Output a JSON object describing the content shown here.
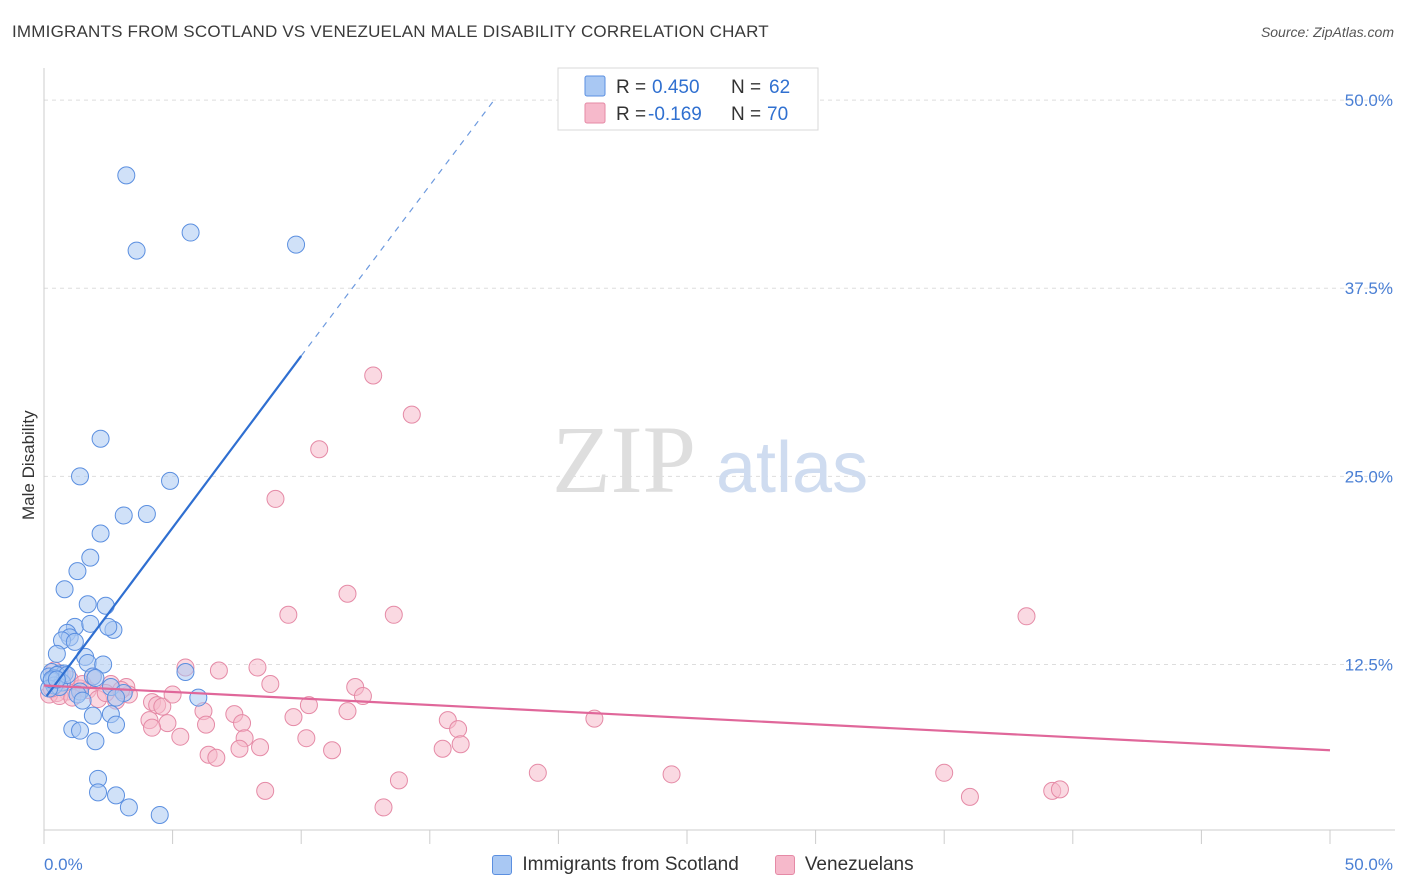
{
  "title": "IMMIGRANTS FROM SCOTLAND VS VENEZUELAN MALE DISABILITY CORRELATION CHART",
  "source": "Source: ZipAtlas.com",
  "watermark": {
    "zip": "ZIP",
    "atlas": "atlas"
  },
  "colors": {
    "blue_fill": "#a9c8f3",
    "blue_stroke": "#5b8fe0",
    "blue_line": "#2f6fd1",
    "pink_fill": "#f6b9cb",
    "pink_stroke": "#e58aa6",
    "pink_line": "#e0679a",
    "tick_color": "#4a7fd4",
    "grid": "#dddddd"
  },
  "legend": {
    "blue": {
      "r_label": "R =",
      "r_value": "0.450",
      "n_label": "N =",
      "n_value": "62"
    },
    "pink": {
      "r_label": "R =",
      "r_value": "-0.169",
      "n_label": "N =",
      "n_value": "70"
    }
  },
  "bottom_legend": {
    "series1": "Immigrants from Scotland",
    "series2": "Venezuelans"
  },
  "chart_data": {
    "type": "scatter",
    "title": "IMMIGRANTS FROM SCOTLAND VS VENEZUELAN MALE DISABILITY CORRELATION CHART",
    "xlabel": "",
    "ylabel": "Male Disability",
    "xlim": [
      0,
      50
    ],
    "ylim": [
      1.5,
      52
    ],
    "x_tick_labels": [
      {
        "value": 0,
        "label": "0.0%"
      },
      {
        "value": 50,
        "label": "50.0%"
      }
    ],
    "y_tick_labels": [
      {
        "value": 12.5,
        "label": "12.5%"
      },
      {
        "value": 25.0,
        "label": "25.0%"
      },
      {
        "value": 37.5,
        "label": "37.5%"
      },
      {
        "value": 50.0,
        "label": "50.0%"
      }
    ],
    "series": [
      {
        "name": "Immigrants from Scotland",
        "color": "blue",
        "points": [
          [
            3.2,
            45.0
          ],
          [
            3.6,
            40.0
          ],
          [
            5.7,
            41.2
          ],
          [
            9.8,
            40.4
          ],
          [
            2.2,
            27.5
          ],
          [
            1.4,
            25.0
          ],
          [
            4.9,
            24.7
          ],
          [
            3.1,
            22.4
          ],
          [
            4.0,
            22.5
          ],
          [
            2.2,
            21.2
          ],
          [
            1.8,
            19.6
          ],
          [
            1.3,
            18.7
          ],
          [
            0.8,
            17.5
          ],
          [
            1.7,
            16.5
          ],
          [
            2.4,
            16.4
          ],
          [
            1.2,
            15.0
          ],
          [
            1.8,
            15.2
          ],
          [
            2.7,
            14.8
          ],
          [
            2.5,
            15.0
          ],
          [
            0.9,
            14.6
          ],
          [
            1.0,
            14.3
          ],
          [
            0.7,
            14.1
          ],
          [
            1.2,
            14.0
          ],
          [
            0.5,
            13.2
          ],
          [
            1.6,
            13.0
          ],
          [
            1.7,
            12.6
          ],
          [
            2.3,
            12.5
          ],
          [
            5.5,
            12.0
          ],
          [
            0.3,
            12.0
          ],
          [
            0.6,
            11.9
          ],
          [
            0.8,
            11.9
          ],
          [
            0.2,
            11.7
          ],
          [
            0.4,
            11.6
          ],
          [
            0.5,
            11.8
          ],
          [
            1.9,
            11.7
          ],
          [
            2.0,
            11.6
          ],
          [
            0.3,
            11.4
          ],
          [
            0.7,
            11.3
          ],
          [
            0.4,
            11.1
          ],
          [
            0.6,
            11.0
          ],
          [
            0.2,
            10.9
          ],
          [
            2.6,
            11.0
          ],
          [
            1.4,
            10.7
          ],
          [
            1.3,
            10.5
          ],
          [
            3.1,
            10.6
          ],
          [
            2.8,
            10.3
          ],
          [
            6.0,
            10.3
          ],
          [
            1.5,
            10.1
          ],
          [
            2.6,
            9.2
          ],
          [
            1.9,
            9.1
          ],
          [
            2.8,
            8.5
          ],
          [
            1.1,
            8.2
          ],
          [
            1.4,
            8.1
          ],
          [
            2.0,
            7.4
          ],
          [
            2.1,
            4.9
          ],
          [
            2.1,
            4.0
          ],
          [
            2.8,
            3.8
          ],
          [
            3.3,
            3.0
          ],
          [
            4.5,
            2.5
          ],
          [
            0.3,
            11.5
          ],
          [
            0.9,
            11.8
          ],
          [
            0.5,
            11.5
          ]
        ]
      },
      {
        "name": "Venezuelans",
        "color": "pink",
        "points": [
          [
            12.8,
            31.7
          ],
          [
            14.3,
            29.1
          ],
          [
            10.7,
            26.8
          ],
          [
            9.0,
            23.5
          ],
          [
            11.8,
            17.2
          ],
          [
            38.2,
            15.7
          ],
          [
            9.5,
            15.8
          ],
          [
            13.6,
            15.8
          ],
          [
            5.5,
            12.3
          ],
          [
            6.8,
            12.1
          ],
          [
            8.3,
            12.3
          ],
          [
            8.8,
            11.2
          ],
          [
            12.1,
            11.0
          ],
          [
            0.4,
            12.1
          ],
          [
            0.7,
            11.8
          ],
          [
            1.0,
            11.5
          ],
          [
            1.9,
            11.7
          ],
          [
            2.6,
            11.2
          ],
          [
            3.2,
            11.0
          ],
          [
            1.4,
            10.9
          ],
          [
            1.7,
            10.8
          ],
          [
            0.9,
            10.7
          ],
          [
            0.5,
            10.6
          ],
          [
            0.2,
            10.5
          ],
          [
            0.6,
            10.4
          ],
          [
            1.1,
            10.3
          ],
          [
            2.1,
            10.2
          ],
          [
            2.8,
            10.1
          ],
          [
            3.3,
            10.5
          ],
          [
            4.2,
            10.0
          ],
          [
            4.4,
            9.8
          ],
          [
            4.6,
            9.7
          ],
          [
            5.0,
            10.5
          ],
          [
            6.2,
            9.4
          ],
          [
            7.4,
            9.2
          ],
          [
            12.4,
            10.4
          ],
          [
            10.3,
            9.8
          ],
          [
            9.7,
            9.0
          ],
          [
            11.8,
            9.4
          ],
          [
            15.7,
            8.8
          ],
          [
            16.1,
            8.2
          ],
          [
            21.4,
            8.9
          ],
          [
            4.8,
            8.6
          ],
          [
            4.1,
            8.8
          ],
          [
            4.2,
            8.3
          ],
          [
            6.3,
            8.5
          ],
          [
            7.7,
            8.6
          ],
          [
            5.3,
            7.7
          ],
          [
            7.8,
            7.6
          ],
          [
            10.2,
            7.6
          ],
          [
            16.2,
            7.2
          ],
          [
            15.5,
            6.9
          ],
          [
            7.6,
            6.9
          ],
          [
            8.4,
            7.0
          ],
          [
            11.2,
            6.8
          ],
          [
            6.4,
            6.5
          ],
          [
            6.7,
            6.3
          ],
          [
            19.2,
            5.3
          ],
          [
            24.4,
            5.2
          ],
          [
            35.0,
            5.3
          ],
          [
            13.8,
            4.8
          ],
          [
            8.6,
            4.1
          ],
          [
            39.2,
            4.1
          ],
          [
            39.5,
            4.2
          ],
          [
            36.0,
            3.7
          ],
          [
            13.2,
            3.0
          ],
          [
            0.3,
            10.9
          ],
          [
            1.5,
            11.2
          ],
          [
            2.4,
            10.6
          ],
          [
            3.0,
            10.8
          ]
        ]
      }
    ],
    "trend_lines": [
      {
        "series": "Immigrants from Scotland",
        "x_start": 0.1,
        "y_start": 10.4,
        "x_end": 10.0,
        "y_end": 33.0,
        "dashed_to_x": 17.5,
        "dashed_to_y": 50.0
      },
      {
        "series": "Venezuelans",
        "x_start": 0.0,
        "y_start": 11.1,
        "x_end": 50.0,
        "y_end": 6.8
      }
    ]
  }
}
